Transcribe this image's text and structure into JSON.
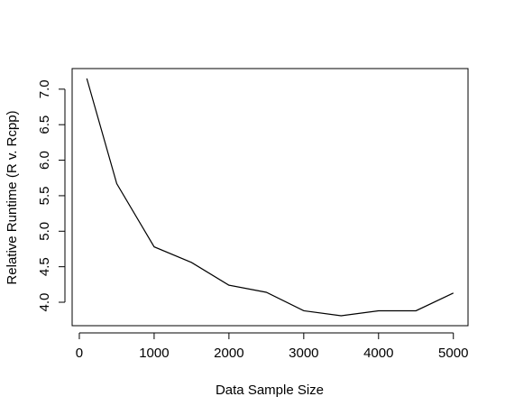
{
  "chart_data": {
    "type": "line",
    "title": "",
    "xlabel": "Data Sample Size",
    "ylabel": "Relative Runtime (R v. Rcpp)",
    "x": [
      100,
      500,
      1000,
      1500,
      2000,
      2500,
      3000,
      3500,
      4000,
      4500,
      5000
    ],
    "series": [
      {
        "values": [
          7.15,
          5.67,
          4.78,
          4.56,
          4.24,
          4.14,
          3.88,
          3.81,
          3.88,
          3.88,
          4.13
        ]
      }
    ],
    "xlim": [
      -96,
      5196
    ],
    "ylim": [
      3.67,
      7.29
    ],
    "xticks": [
      0,
      1000,
      2000,
      3000,
      4000,
      5000
    ],
    "xtick_labels": [
      "0",
      "1000",
      "2000",
      "3000",
      "4000",
      "5000"
    ],
    "yticks": [
      4.0,
      4.5,
      5.0,
      5.5,
      6.0,
      6.5,
      7.0
    ],
    "ytick_labels": [
      "4.0",
      "4.5",
      "5.0",
      "5.5",
      "6.0",
      "6.5",
      "7.0"
    ],
    "line_color": "#000000",
    "grid": false,
    "legend": "none"
  }
}
